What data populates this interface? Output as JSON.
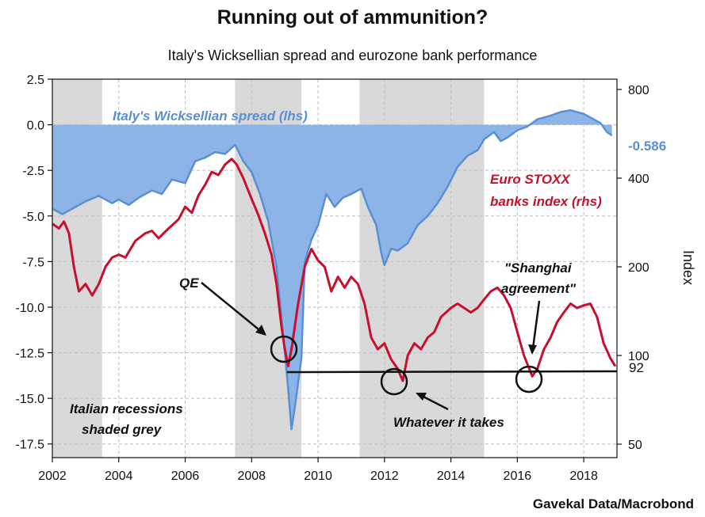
{
  "chart_data": {
    "type": "line",
    "title": "Running out of ammunition?",
    "subtitle": "Italy's Wicksellian spread and eurozone bank performance",
    "source": "Gavekal Data/Macrobond",
    "xlim": [
      2002,
      2019
    ],
    "x_ticks": [
      "2002",
      "2004",
      "2006",
      "2008",
      "2010",
      "2012",
      "2014",
      "2016",
      "2018"
    ],
    "y_left": {
      "range": [
        -18.25,
        2.5
      ],
      "ticks": [
        "2.5",
        "0.0",
        "-2.5",
        "-5.0",
        "-7.5",
        "-10.0",
        "-12.5",
        "-15.0",
        "-17.5"
      ]
    },
    "y_right": {
      "label": "Index",
      "scale": "log",
      "range": [
        50,
        800
      ],
      "ticks": [
        "800",
        "400",
        "200",
        "100",
        "50"
      ]
    },
    "recessions": [
      [
        2002.0,
        2003.5
      ],
      [
        2007.5,
        2009.5
      ],
      [
        2011.25,
        2015.0
      ]
    ],
    "series": [
      {
        "name": "Italy's Wicksellian spread (lhs)",
        "axis": "left",
        "color": "#5b8fd4",
        "fill": "#8db4e6",
        "last_value_label": "-0.586",
        "points": [
          [
            2002.0,
            -4.6
          ],
          [
            2002.3,
            -4.9
          ],
          [
            2002.6,
            -4.6
          ],
          [
            2003.0,
            -4.2
          ],
          [
            2003.4,
            -3.9
          ],
          [
            2003.8,
            -4.3
          ],
          [
            2004.0,
            -4.1
          ],
          [
            2004.3,
            -4.4
          ],
          [
            2004.6,
            -4.0
          ],
          [
            2005.0,
            -3.6
          ],
          [
            2005.3,
            -3.8
          ],
          [
            2005.6,
            -3.0
          ],
          [
            2006.0,
            -3.2
          ],
          [
            2006.3,
            -2.0
          ],
          [
            2006.6,
            -1.8
          ],
          [
            2006.9,
            -1.5
          ],
          [
            2007.2,
            -1.6
          ],
          [
            2007.5,
            -1.1
          ],
          [
            2007.75,
            -2.0
          ],
          [
            2008.0,
            -2.6
          ],
          [
            2008.25,
            -3.8
          ],
          [
            2008.5,
            -5.3
          ],
          [
            2008.75,
            -7.8
          ],
          [
            2009.0,
            -12.5
          ],
          [
            2009.1,
            -14.5
          ],
          [
            2009.2,
            -16.7
          ],
          [
            2009.3,
            -15.5
          ],
          [
            2009.5,
            -12.8
          ],
          [
            2009.6,
            -7.5
          ],
          [
            2009.8,
            -6.3
          ],
          [
            2010.0,
            -5.5
          ],
          [
            2010.25,
            -3.8
          ],
          [
            2010.5,
            -4.5
          ],
          [
            2010.75,
            -4.0
          ],
          [
            2011.0,
            -3.8
          ],
          [
            2011.3,
            -3.5
          ],
          [
            2011.5,
            -4.5
          ],
          [
            2011.75,
            -5.5
          ],
          [
            2011.9,
            -7.0
          ],
          [
            2012.0,
            -7.7
          ],
          [
            2012.2,
            -6.8
          ],
          [
            2012.4,
            -6.9
          ],
          [
            2012.7,
            -6.5
          ],
          [
            2013.0,
            -5.5
          ],
          [
            2013.3,
            -5.0
          ],
          [
            2013.6,
            -4.3
          ],
          [
            2013.9,
            -3.4
          ],
          [
            2014.2,
            -2.3
          ],
          [
            2014.5,
            -1.7
          ],
          [
            2014.8,
            -1.4
          ],
          [
            2015.0,
            -0.8
          ],
          [
            2015.3,
            -0.4
          ],
          [
            2015.5,
            -0.9
          ],
          [
            2015.7,
            -0.7
          ],
          [
            2016.0,
            -0.3
          ],
          [
            2016.3,
            -0.1
          ],
          [
            2016.6,
            0.3
          ],
          [
            2017.0,
            0.5
          ],
          [
            2017.3,
            0.7
          ],
          [
            2017.6,
            0.8
          ],
          [
            2018.0,
            0.6
          ],
          [
            2018.3,
            0.3
          ],
          [
            2018.5,
            0.1
          ],
          [
            2018.7,
            -0.4
          ],
          [
            2018.85,
            -0.586
          ]
        ]
      },
      {
        "name": "Euro STOXX banks index (rhs)",
        "axis": "right",
        "color": "#c8102e",
        "last_value_label": "92",
        "points": [
          [
            2002.0,
            280
          ],
          [
            2002.2,
            270
          ],
          [
            2002.35,
            285
          ],
          [
            2002.5,
            260
          ],
          [
            2002.65,
            200
          ],
          [
            2002.8,
            165
          ],
          [
            2003.0,
            175
          ],
          [
            2003.2,
            160
          ],
          [
            2003.4,
            175
          ],
          [
            2003.6,
            200
          ],
          [
            2003.8,
            215
          ],
          [
            2004.0,
            220
          ],
          [
            2004.2,
            215
          ],
          [
            2004.5,
            245
          ],
          [
            2004.8,
            260
          ],
          [
            2005.0,
            265
          ],
          [
            2005.2,
            250
          ],
          [
            2005.5,
            270
          ],
          [
            2005.8,
            290
          ],
          [
            2006.0,
            320
          ],
          [
            2006.2,
            305
          ],
          [
            2006.4,
            350
          ],
          [
            2006.6,
            380
          ],
          [
            2006.8,
            420
          ],
          [
            2007.0,
            410
          ],
          [
            2007.2,
            445
          ],
          [
            2007.4,
            465
          ],
          [
            2007.55,
            445
          ],
          [
            2007.75,
            400
          ],
          [
            2008.0,
            340
          ],
          [
            2008.2,
            300
          ],
          [
            2008.4,
            260
          ],
          [
            2008.6,
            220
          ],
          [
            2008.75,
            175
          ],
          [
            2008.9,
            125
          ],
          [
            2009.0,
            105
          ],
          [
            2009.1,
            92
          ],
          [
            2009.2,
            105
          ],
          [
            2009.4,
            150
          ],
          [
            2009.6,
            200
          ],
          [
            2009.8,
            230
          ],
          [
            2010.0,
            210
          ],
          [
            2010.2,
            200
          ],
          [
            2010.4,
            165
          ],
          [
            2010.6,
            185
          ],
          [
            2010.8,
            170
          ],
          [
            2011.0,
            185
          ],
          [
            2011.2,
            175
          ],
          [
            2011.4,
            150
          ],
          [
            2011.6,
            115
          ],
          [
            2011.8,
            105
          ],
          [
            2012.0,
            110
          ],
          [
            2012.2,
            97
          ],
          [
            2012.4,
            90
          ],
          [
            2012.55,
            82
          ],
          [
            2012.7,
            100
          ],
          [
            2012.9,
            110
          ],
          [
            2013.1,
            105
          ],
          [
            2013.3,
            115
          ],
          [
            2013.5,
            120
          ],
          [
            2013.7,
            135
          ],
          [
            2014.0,
            145
          ],
          [
            2014.2,
            150
          ],
          [
            2014.4,
            145
          ],
          [
            2014.6,
            140
          ],
          [
            2014.8,
            145
          ],
          [
            2015.0,
            155
          ],
          [
            2015.2,
            165
          ],
          [
            2015.4,
            170
          ],
          [
            2015.6,
            160
          ],
          [
            2015.8,
            145
          ],
          [
            2016.0,
            120
          ],
          [
            2016.2,
            100
          ],
          [
            2016.45,
            85
          ],
          [
            2016.6,
            90
          ],
          [
            2016.8,
            105
          ],
          [
            2017.0,
            115
          ],
          [
            2017.2,
            130
          ],
          [
            2017.4,
            140
          ],
          [
            2017.6,
            150
          ],
          [
            2017.8,
            145
          ],
          [
            2018.0,
            148
          ],
          [
            2018.2,
            150
          ],
          [
            2018.4,
            135
          ],
          [
            2018.6,
            110
          ],
          [
            2018.8,
            98
          ],
          [
            2018.95,
            92
          ]
        ]
      }
    ],
    "annotations": {
      "recessions_label": [
        "Italian recessions",
        "shaded grey"
      ],
      "qe": "QE",
      "whatever": "Whatever it takes",
      "shanghai": [
        "\"Shanghai",
        "agreement\""
      ]
    }
  }
}
